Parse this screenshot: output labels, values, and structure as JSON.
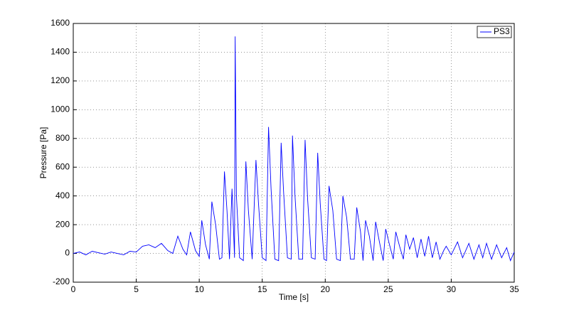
{
  "chart_data": {
    "type": "line",
    "x_label": "Time [s]",
    "y_label": "Pressure [Pa]",
    "x": [
      0,
      0.5,
      1,
      1.5,
      2,
      2.5,
      3,
      3.5,
      4,
      4.5,
      5,
      5.5,
      6,
      6.5,
      7,
      7.5,
      7.9,
      8.3,
      8.7,
      9.0,
      9.3,
      9.7,
      10.0,
      10.2,
      10.5,
      10.8,
      11.0,
      11.3,
      11.6,
      11.8,
      12.0,
      12.2,
      12.4,
      12.6,
      12.8,
      12.85,
      12.95,
      13.2,
      13.5,
      13.7,
      13.9,
      14.2,
      14.5,
      14.7,
      15.0,
      15.3,
      15.5,
      15.7,
      16.0,
      16.3,
      16.5,
      16.7,
      17.0,
      17.3,
      17.4,
      17.6,
      17.9,
      18.2,
      18.4,
      18.6,
      18.9,
      19.2,
      19.4,
      19.6,
      19.9,
      20.1,
      20.3,
      20.6,
      20.9,
      21.2,
      21.4,
      21.7,
      22.0,
      22.3,
      22.5,
      22.8,
      23.0,
      23.2,
      23.5,
      23.8,
      24.0,
      24.3,
      24.6,
      24.8,
      25.1,
      25.4,
      25.6,
      25.9,
      26.2,
      26.4,
      26.7,
      27.0,
      27.3,
      27.6,
      27.9,
      28.2,
      28.5,
      28.8,
      29.1,
      29.4,
      29.6,
      30.0,
      30.5,
      30.9,
      31.4,
      31.8,
      32.2,
      32.5,
      32.8,
      33.2,
      33.6,
      34.0,
      34.4,
      34.7,
      35
    ],
    "series": [
      {
        "name": "PS3",
        "color": "#0000ff",
        "values": [
          0,
          10,
          -10,
          15,
          5,
          -5,
          10,
          0,
          -10,
          15,
          10,
          50,
          60,
          40,
          70,
          20,
          0,
          120,
          30,
          -10,
          150,
          20,
          -20,
          230,
          60,
          -40,
          360,
          200,
          -40,
          -30,
          570,
          300,
          -40,
          450,
          -30,
          1510,
          400,
          -30,
          -50,
          640,
          300,
          -40,
          650,
          350,
          -30,
          -50,
          880,
          450,
          -40,
          -50,
          770,
          420,
          -30,
          -40,
          820,
          400,
          -40,
          -40,
          790,
          380,
          -30,
          -40,
          700,
          350,
          -40,
          -50,
          470,
          300,
          -40,
          -50,
          400,
          250,
          -40,
          -40,
          320,
          150,
          -50,
          230,
          120,
          -50,
          220,
          80,
          -50,
          170,
          60,
          -40,
          150,
          50,
          -40,
          130,
          30,
          110,
          -30,
          100,
          -20,
          120,
          -30,
          80,
          -40,
          20,
          50,
          -10,
          80,
          -30,
          70,
          -40,
          60,
          -30,
          70,
          -40,
          60,
          -30,
          40,
          -50,
          10
        ]
      }
    ],
    "xlim": [
      0,
      35
    ],
    "xticks": [
      0,
      5,
      10,
      15,
      20,
      25,
      30,
      35
    ],
    "ylim": [
      -200,
      1600
    ],
    "yticks": [
      -200,
      0,
      200,
      400,
      600,
      800,
      1000,
      1200,
      1400,
      1600
    ],
    "grid": true,
    "legend": "top-right"
  }
}
